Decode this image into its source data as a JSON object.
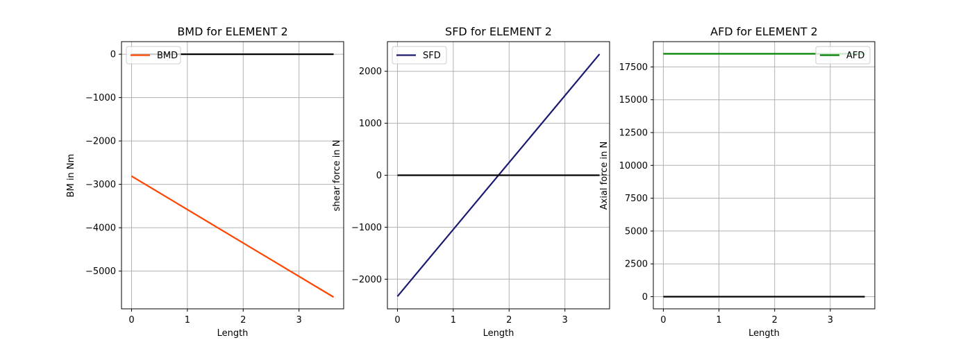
{
  "chart_data": [
    {
      "type": "line",
      "title": "BMD for ELEMENT 2",
      "xlabel": "Length",
      "ylabel": "BM in Nm",
      "xlim": [
        -0.18,
        3.8
      ],
      "ylim": [
        -5870,
        290
      ],
      "xticks": [
        0,
        1,
        2,
        3
      ],
      "xtick_labels": [
        "0",
        "1",
        "2",
        "3"
      ],
      "yticks": [
        0,
        -1000,
        -2000,
        -3000,
        -4000,
        -5000
      ],
      "ytick_labels": [
        "0",
        "−1000",
        "−2000",
        "−3000",
        "−4000",
        "−5000"
      ],
      "grid": true,
      "legend_position": "upper-left",
      "series": [
        {
          "name": "BMD",
          "color": "#ff4500",
          "x": [
            0,
            3.62
          ],
          "y": [
            -2810,
            -5600
          ],
          "in_legend": true
        },
        {
          "color": "#000000",
          "x": [
            0,
            3.62
          ],
          "y": [
            0,
            0
          ],
          "in_legend": false
        }
      ]
    },
    {
      "type": "line",
      "title": "SFD for ELEMENT 2",
      "xlabel": "Length",
      "ylabel": "shear force in N",
      "xlim": [
        -0.18,
        3.8
      ],
      "ylim": [
        -2570,
        2570
      ],
      "xticks": [
        0,
        1,
        2,
        3
      ],
      "xtick_labels": [
        "0",
        "1",
        "2",
        "3"
      ],
      "yticks": [
        2000,
        1000,
        0,
        -1000,
        -2000
      ],
      "ytick_labels": [
        "2000",
        "1000",
        "0",
        "−1000",
        "−2000"
      ],
      "grid": true,
      "legend_position": "upper-left",
      "series": [
        {
          "name": "SFD",
          "color": "#191970",
          "x": [
            0,
            3.62
          ],
          "y": [
            -2330,
            2330
          ],
          "in_legend": true
        },
        {
          "color": "#000000",
          "x": [
            0,
            3.62
          ],
          "y": [
            0,
            0
          ],
          "in_legend": false
        }
      ]
    },
    {
      "type": "line",
      "title": "AFD for ELEMENT 2",
      "xlabel": "Length",
      "ylabel": "Axial force in N",
      "xlim": [
        -0.18,
        3.8
      ],
      "ylim": [
        -925,
        19425
      ],
      "xticks": [
        0,
        1,
        2,
        3
      ],
      "xtick_labels": [
        "0",
        "1",
        "2",
        "3"
      ],
      "yticks": [
        17500,
        15000,
        12500,
        10000,
        7500,
        5000,
        2500,
        0
      ],
      "ytick_labels": [
        "17500",
        "15000",
        "12500",
        "10000",
        "7500",
        "5000",
        "2500",
        "0"
      ],
      "grid": true,
      "legend_position": "upper-right",
      "series": [
        {
          "name": "AFD",
          "color": "#008000",
          "x": [
            0,
            3.62
          ],
          "y": [
            18500,
            18500
          ],
          "in_legend": true
        },
        {
          "color": "#000000",
          "x": [
            0,
            3.62
          ],
          "y": [
            0,
            0
          ],
          "in_legend": false
        }
      ]
    }
  ]
}
